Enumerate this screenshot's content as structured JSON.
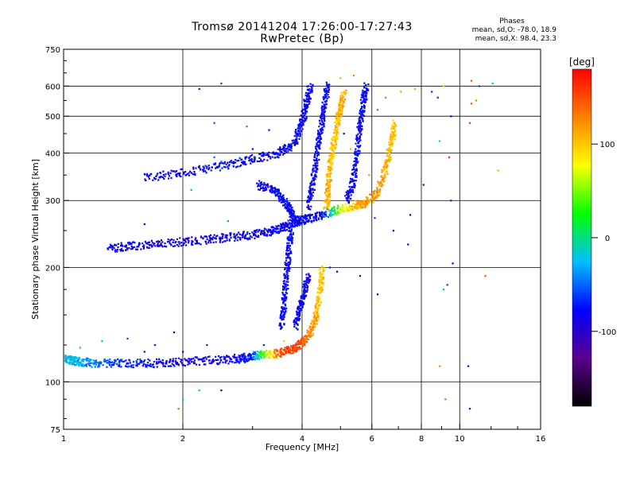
{
  "header": {
    "title_line1": "Tromsø 20141204 17:26:00-17:27:43",
    "title_line2": "RwPretec (Bp)"
  },
  "phase_info": {
    "heading": "Phases",
    "o_mode": "mean, sd,O: -78.0, 18.9",
    "x_mode": "mean, sd,X:  98.4, 23.3"
  },
  "colorbar": {
    "unit_label": "[deg]",
    "ticks": [
      {
        "value": 100,
        "label": "100"
      },
      {
        "value": 0,
        "label": "0"
      },
      {
        "value": -100,
        "label": "-100"
      }
    ],
    "range": [
      -180,
      180
    ],
    "colormap": [
      "#000000",
      "#5a008c",
      "#0000ff",
      "#00bfff",
      "#00ff00",
      "#ffff00",
      "#ff8000",
      "#ff0000"
    ]
  },
  "chart_data": {
    "type": "scatter",
    "title": "Tromsø 20141204 17:26:00-17:27:43",
    "subtitle": "RwPretec (Bp)",
    "xlabel": "Frequency [MHz]",
    "ylabel": "Stationary phase Virtual Height [km]",
    "xscale": "log",
    "yscale": "log",
    "xlim": [
      1,
      16
    ],
    "ylim": [
      75,
      750
    ],
    "grid": true,
    "xticks": [
      {
        "value": 1,
        "label": "1"
      },
      {
        "value": 2,
        "label": "2"
      },
      {
        "value": 4,
        "label": "4"
      },
      {
        "value": 6,
        "label": "6"
      },
      {
        "value": 8,
        "label": "8"
      },
      {
        "value": 10,
        "label": "10"
      },
      {
        "value": 16,
        "label": "16"
      }
    ],
    "xgrid": [
      2,
      4,
      6,
      8,
      10
    ],
    "yticks": [
      {
        "value": 75,
        "label": "75"
      },
      {
        "value": 100,
        "label": "100"
      },
      {
        "value": 200,
        "label": "200"
      },
      {
        "value": 300,
        "label": "300"
      },
      {
        "value": 400,
        "label": "400"
      },
      {
        "value": 500,
        "label": "500"
      },
      {
        "value": 600,
        "label": "600"
      },
      {
        "value": 750,
        "label": "750"
      }
    ],
    "ygrid": [
      100,
      200,
      300,
      400,
      500,
      600
    ],
    "color_variable": "phase [deg]",
    "traces": [
      {
        "points": [
          [
            1.0,
            115,
            -20
          ],
          [
            1.05,
            114,
            -25
          ],
          [
            1.1,
            113,
            -30
          ],
          [
            1.2,
            112,
            -45
          ],
          [
            1.4,
            112,
            -65
          ],
          [
            1.7,
            112,
            -80
          ],
          [
            2.0,
            113,
            -85
          ],
          [
            2.4,
            114,
            -85
          ],
          [
            2.8,
            115,
            -82
          ],
          [
            3.0,
            117,
            -70
          ],
          [
            3.2,
            118,
            40
          ],
          [
            3.5,
            119,
            150
          ],
          [
            3.8,
            122,
            160
          ],
          [
            4.0,
            127,
            150
          ],
          [
            4.2,
            135,
            120
          ],
          [
            4.35,
            150,
            110
          ],
          [
            4.45,
            175,
            100
          ],
          [
            4.5,
            200,
            95
          ]
        ]
      },
      {
        "points": [
          [
            1.3,
            225,
            -80
          ],
          [
            1.5,
            228,
            -85
          ],
          [
            1.8,
            232,
            -88
          ],
          [
            2.2,
            236,
            -88
          ],
          [
            2.6,
            240,
            -86
          ],
          [
            3.0,
            244,
            -85
          ],
          [
            3.4,
            250,
            -82
          ],
          [
            3.7,
            258,
            -80
          ],
          [
            3.9,
            265,
            -80
          ],
          [
            4.1,
            268,
            -82
          ],
          [
            4.5,
            275,
            -80
          ],
          [
            5.0,
            285,
            60
          ],
          [
            5.5,
            292,
            110
          ],
          [
            5.8,
            295,
            120
          ],
          [
            6.2,
            315,
            120
          ],
          [
            6.5,
            360,
            110
          ],
          [
            6.7,
            420,
            105
          ],
          [
            6.85,
            480,
            100
          ]
        ]
      },
      {
        "points": [
          [
            3.1,
            330,
            -80
          ],
          [
            3.4,
            320,
            -80
          ],
          [
            3.6,
            300,
            -82
          ],
          [
            3.75,
            280,
            -80
          ],
          [
            3.85,
            268,
            -80
          ]
        ]
      },
      {
        "points": [
          [
            1.6,
            345,
            -80
          ],
          [
            2.0,
            355,
            -82
          ],
          [
            2.5,
            370,
            -78
          ],
          [
            3.0,
            385,
            -80
          ],
          [
            3.5,
            400,
            -78
          ],
          [
            3.8,
            420,
            -80
          ],
          [
            4.0,
            480,
            -82
          ],
          [
            4.1,
            540,
            -80
          ],
          [
            4.2,
            600,
            -80
          ]
        ]
      },
      {
        "points": [
          [
            4.6,
            285,
            100
          ],
          [
            4.65,
            320,
            110
          ],
          [
            4.7,
            370,
            105
          ],
          [
            4.8,
            420,
            100
          ],
          [
            4.9,
            470,
            100
          ],
          [
            5.0,
            520,
            110
          ],
          [
            5.1,
            580,
            110
          ]
        ]
      },
      {
        "points": [
          [
            5.2,
            300,
            -80
          ],
          [
            5.4,
            340,
            -82
          ],
          [
            5.5,
            400,
            -80
          ],
          [
            5.6,
            470,
            -85
          ],
          [
            5.7,
            540,
            -80
          ],
          [
            5.8,
            600,
            -78
          ]
        ]
      },
      {
        "points": [
          [
            4.15,
            290,
            -80
          ],
          [
            4.25,
            330,
            -85
          ],
          [
            4.35,
            390,
            -80
          ],
          [
            4.45,
            460,
            -80
          ],
          [
            4.55,
            530,
            -82
          ],
          [
            4.65,
            610,
            -80
          ]
        ]
      },
      {
        "points": [
          [
            3.55,
            140,
            -80
          ],
          [
            3.6,
            160,
            -80
          ],
          [
            3.65,
            190,
            -82
          ],
          [
            3.7,
            220,
            -80
          ],
          [
            3.75,
            250,
            -78
          ]
        ]
      },
      {
        "points": [
          [
            3.85,
            140,
            -78
          ],
          [
            3.95,
            155,
            -80
          ],
          [
            4.05,
            170,
            -82
          ],
          [
            4.15,
            190,
            -80
          ]
        ]
      }
    ],
    "scatter_points": [
      [
        1.7,
        125,
        -70
      ],
      [
        2.0,
        120,
        -75
      ],
      [
        2.3,
        125,
        -70
      ],
      [
        2.7,
        118,
        -80
      ],
      [
        1.45,
        130,
        -60
      ],
      [
        1.6,
        120,
        -85
      ],
      [
        1.9,
        135,
        -80
      ],
      [
        2.4,
        390,
        -50
      ],
      [
        2.5,
        380,
        -45
      ],
      [
        2.6,
        370,
        -50
      ],
      [
        2.2,
        590,
        -70
      ],
      [
        2.5,
        610,
        -60
      ],
      [
        2.4,
        480,
        -55
      ],
      [
        2.9,
        470,
        -40
      ],
      [
        2.1,
        320,
        -30
      ],
      [
        2.6,
        265,
        -40
      ],
      [
        3.2,
        330,
        -80
      ],
      [
        1.6,
        260,
        -80
      ],
      [
        2.0,
        90,
        -20
      ],
      [
        2.2,
        95,
        -30
      ],
      [
        1.95,
        85,
        140
      ],
      [
        2.5,
        95,
        -150
      ],
      [
        3.0,
        410,
        -85
      ],
      [
        3.3,
        460,
        -80
      ],
      [
        5.3,
        410,
        110
      ],
      [
        5.9,
        350,
        120
      ],
      [
        5.0,
        630,
        110
      ],
      [
        5.4,
        640,
        130
      ],
      [
        6.2,
        520,
        150
      ],
      [
        6.5,
        560,
        140
      ],
      [
        7.1,
        580,
        120
      ],
      [
        7.7,
        590,
        110
      ],
      [
        8.5,
        580,
        -70
      ],
      [
        8.8,
        560,
        -70
      ],
      [
        9.1,
        600,
        100
      ],
      [
        9.5,
        500,
        -85
      ],
      [
        10.7,
        620,
        150
      ],
      [
        11.2,
        600,
        -60
      ],
      [
        12.1,
        610,
        -30
      ],
      [
        9.4,
        390,
        160
      ],
      [
        9.5,
        300,
        -120
      ],
      [
        8.9,
        430,
        -20
      ],
      [
        7.5,
        275,
        -80
      ],
      [
        6.1,
        270,
        -60
      ],
      [
        5.5,
        440,
        -80
      ],
      [
        5.1,
        450,
        -80
      ],
      [
        6.8,
        250,
        -80
      ],
      [
        7.4,
        230,
        -80
      ],
      [
        8.9,
        110,
        130
      ],
      [
        10.5,
        110,
        -80
      ],
      [
        10.6,
        85,
        -80
      ],
      [
        9.6,
        205,
        -80
      ],
      [
        9.3,
        180,
        -60
      ],
      [
        11.6,
        190,
        150
      ],
      [
        12.5,
        360,
        110
      ],
      [
        6.2,
        170,
        -80
      ],
      [
        5.6,
        190,
        -80
      ],
      [
        10.7,
        540,
        150
      ],
      [
        10.6,
        480,
        160
      ],
      [
        11.0,
        550,
        130
      ],
      [
        8.1,
        330,
        -80
      ],
      [
        9.1,
        175,
        -30
      ],
      [
        9.2,
        90,
        140
      ],
      [
        4.7,
        200,
        -70
      ],
      [
        4.9,
        195,
        -80
      ],
      [
        3.2,
        125,
        -70
      ],
      [
        3.6,
        128,
        100
      ],
      [
        1.25,
        128,
        -30
      ],
      [
        1.1,
        123,
        -20
      ]
    ]
  }
}
